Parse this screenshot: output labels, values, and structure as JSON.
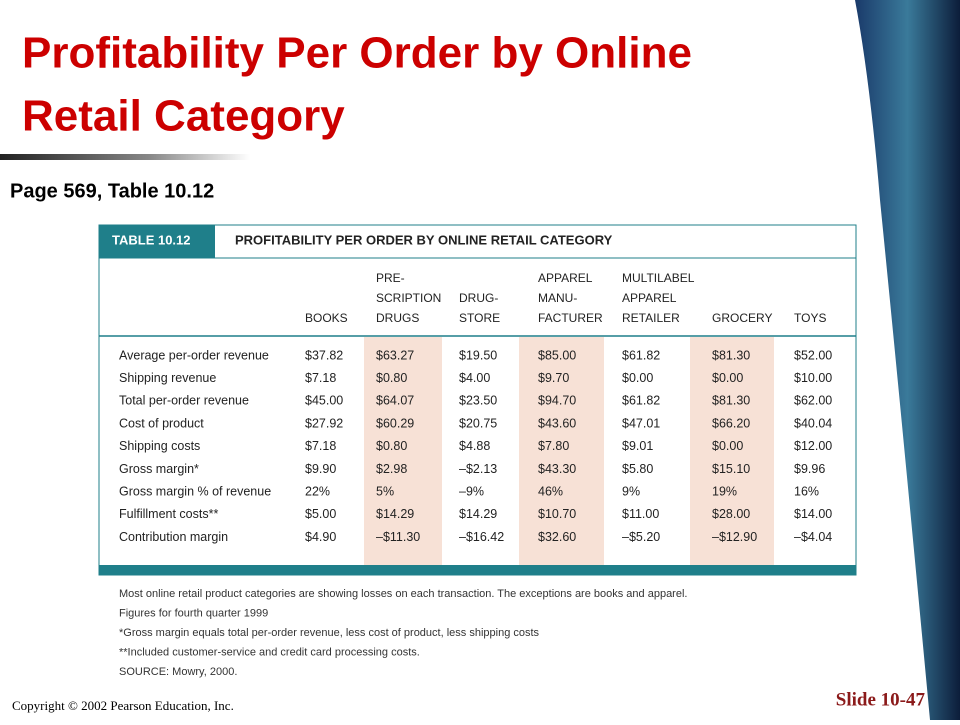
{
  "slide": {
    "title_lines": [
      "Profitability Per Order by Online",
      "Retail Category"
    ],
    "subtitle": "Page 569, Table 10.12",
    "copyright": "Copyright © 2002 Pearson Education, Inc.",
    "slide_number": "Slide 10-47"
  },
  "table": {
    "label": "TABLE 10.12",
    "title": "PROFITABILITY PER ORDER BY ONLINE RETAIL CATEGORY",
    "columns": [
      [
        "BOOKS"
      ],
      [
        "PRE-",
        "SCRIPTION",
        "DRUGS"
      ],
      [
        "DRUG-",
        "STORE"
      ],
      [
        "APPAREL",
        "MANU-",
        "FACTURER"
      ],
      [
        "MULTILABEL",
        "APPAREL",
        "RETAILER"
      ],
      [
        "GROCERY"
      ],
      [
        "TOYS"
      ]
    ],
    "rows": [
      [
        "Average per-order revenue",
        "$37.82",
        "$63.27",
        "$19.50",
        "$85.00",
        "$61.82",
        "$81.30",
        "$52.00"
      ],
      [
        "Shipping revenue",
        "$7.18",
        "$0.80",
        "$4.00",
        "$9.70",
        "$0.00",
        "$0.00",
        "$10.00"
      ],
      [
        "Total per-order revenue",
        "$45.00",
        "$64.07",
        "$23.50",
        "$94.70",
        "$61.82",
        "$81.30",
        "$62.00"
      ],
      [
        "Cost of product",
        "$27.92",
        "$60.29",
        "$20.75",
        "$43.60",
        "$47.01",
        "$66.20",
        "$40.04"
      ],
      [
        "Shipping costs",
        "$7.18",
        "$0.80",
        "$4.88",
        "$7.80",
        "$9.01",
        "$0.00",
        "$12.00"
      ],
      [
        "Gross margin*",
        "$9.90",
        "$2.98",
        "–$2.13",
        "$43.30",
        "$5.80",
        "$15.10",
        "$9.96"
      ],
      [
        "Gross margin % of revenue",
        "22%",
        "5%",
        "–9%",
        "46%",
        "9%",
        "19%",
        "16%"
      ],
      [
        "Fulfillment costs**",
        "$5.00",
        "$14.29",
        "$14.29",
        "$10.70",
        "$11.00",
        "$28.00",
        "$14.00"
      ],
      [
        "Contribution margin",
        "$4.90",
        "–$11.30",
        "–$16.42",
        "$32.60",
        "–$5.20",
        "–$12.90",
        "–$4.04"
      ]
    ],
    "notes": [
      "Most online retail product categories are showing losses on each transaction. The exceptions are books and apparel.",
      "Figures for fourth quarter 1999",
      "*Gross margin equals total per-order revenue, less cost of product, less shipping costs",
      "**Included customer-service and credit card processing costs.",
      "SOURCE: Mowry, 2000."
    ]
  }
}
